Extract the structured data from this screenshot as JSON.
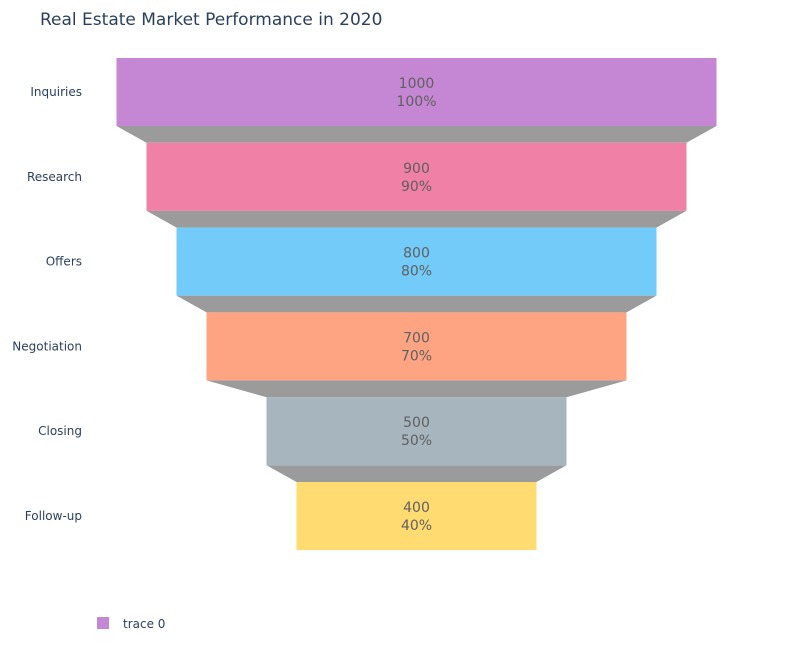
{
  "chart_data": {
    "type": "funnel",
    "title": "Real Estate Market Performance in 2020",
    "categories": [
      "Inquiries",
      "Research",
      "Offers",
      "Negotiation",
      "Closing",
      "Follow-up"
    ],
    "values": [
      1000,
      900,
      800,
      700,
      500,
      400
    ],
    "percent_labels": [
      "100%",
      "90%",
      "80%",
      "70%",
      "50%",
      "40%"
    ],
    "colors": [
      "#c586d4",
      "#f080a5",
      "#72cbf8",
      "#ffa482",
      "#a6b5be",
      "#ffdb72"
    ],
    "connector_color": "#9b9b9b",
    "legend": {
      "position": "bottom-left",
      "entries": [
        {
          "name": "trace 0",
          "color": "#c586d4"
        }
      ]
    },
    "xlabel": "",
    "ylabel": ""
  }
}
